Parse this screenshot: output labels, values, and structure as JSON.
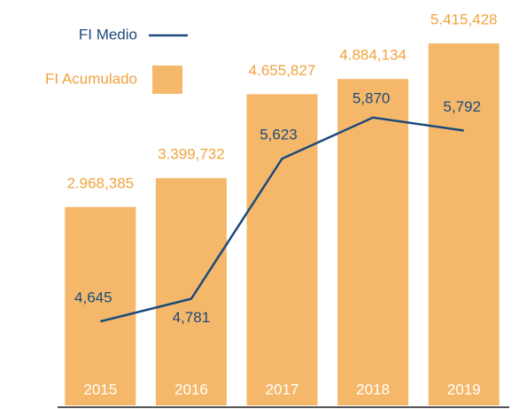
{
  "chart_data": {
    "type": "bar-line",
    "categories": [
      "2015",
      "2016",
      "2017",
      "2018",
      "2019"
    ],
    "series": [
      {
        "name": "FI Acumulado",
        "type": "bar",
        "color": "#f5b86a",
        "label_color": "#f0a33c",
        "values": [
          2968.385,
          3399.732,
          4655.827,
          4884.134,
          5415.428
        ],
        "value_labels": [
          "2.968,385",
          "3.399,732",
          "4.655,827",
          "4.884,134",
          "5.415,428"
        ]
      },
      {
        "name": "FI Medio",
        "type": "line",
        "axis": "y2",
        "color": "#1c4a7c",
        "values": [
          4.645,
          4.781,
          5.623,
          5.87,
          5.792
        ],
        "value_labels": [
          "4,645",
          "4,781",
          "5,623",
          "5,870",
          "5,792"
        ]
      }
    ],
    "ylim": [
      0,
      5800
    ],
    "y2lim": [
      4.14,
      6.47
    ]
  }
}
